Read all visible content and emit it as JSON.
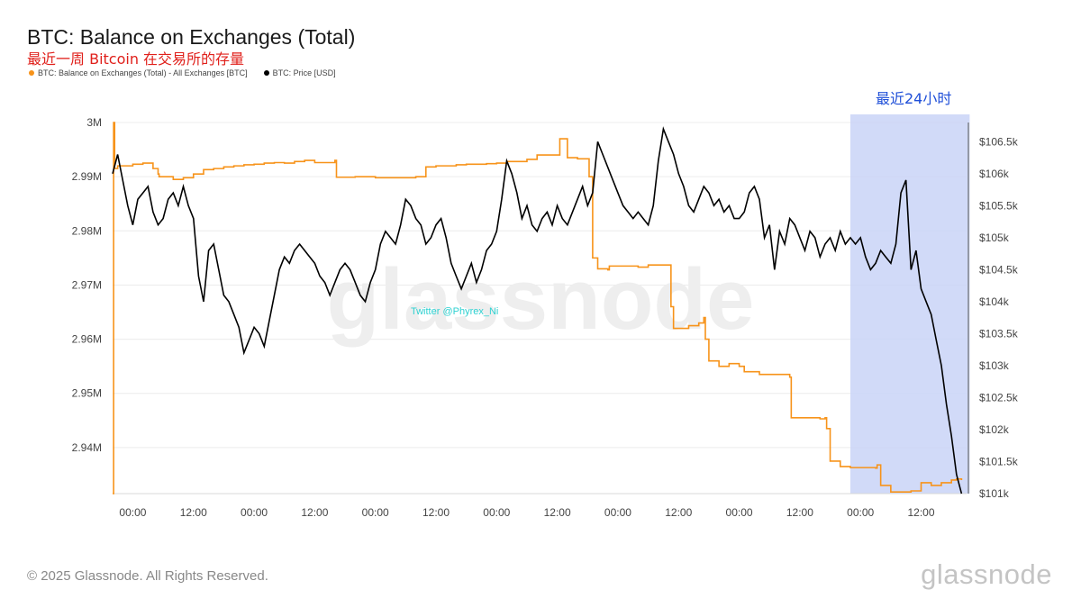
{
  "chart_data": {
    "type": "line",
    "title": "BTC: Balance on Exchanges (Total)",
    "subtitle": "最近一周 Bitcoin 在交易所的存量",
    "annotation": "最近24小时",
    "x_tick_labels": [
      "00:00",
      "12:00",
      "00:00",
      "12:00",
      "00:00",
      "12:00",
      "00:00",
      "12:00",
      "00:00",
      "12:00",
      "00:00",
      "12:00",
      "00:00",
      "12:00"
    ],
    "x_range_hours": [
      -4,
      165
    ],
    "highlight_range_hours": [
      142,
      164
    ],
    "y_left": {
      "ticks": [
        2940000,
        2950000,
        2960000,
        2970000,
        2980000,
        2990000,
        3000000
      ],
      "tick_labels": [
        "2.94M",
        "2.95M",
        "2.96M",
        "2.97M",
        "2.98M",
        "2.99M",
        "3M"
      ],
      "range": [
        2931500,
        3000000
      ]
    },
    "y_right": {
      "ticks": [
        101000,
        101500,
        102000,
        102500,
        103000,
        103500,
        104000,
        104500,
        105000,
        105500,
        106000,
        106500
      ],
      "tick_labels": [
        "$101k",
        "$101.5k",
        "$102k",
        "$102.5k",
        "$103k",
        "$103.5k",
        "$104k",
        "$104.5k",
        "$105k",
        "$105.5k",
        "$106k",
        "$106.5k"
      ],
      "range": [
        101000,
        106800
      ]
    },
    "series": [
      {
        "name": "BTC: Balance on Exchanges (Total) - All Exchanges [BTC]",
        "axis": "left",
        "color": "#f7931a",
        "x": [
          -4,
          -3.8,
          -3.6,
          -3,
          -2,
          0,
          2,
          4,
          5,
          5.2,
          6,
          8,
          10,
          12,
          14,
          16,
          18,
          20,
          22,
          24,
          26,
          28,
          30,
          32,
          34,
          36,
          38,
          40,
          40.3,
          41,
          44,
          48,
          52,
          56,
          58,
          60,
          62,
          64,
          66,
          68,
          70,
          72,
          74,
          76,
          78,
          80,
          82,
          84,
          84.5,
          86,
          88,
          90,
          90.3,
          91,
          92,
          94,
          94.3,
          96,
          98,
          100,
          102,
          104,
          106,
          106.5,
          107,
          108,
          110,
          112,
          113,
          113.3,
          114,
          116,
          118,
          120,
          121,
          122,
          124,
          126,
          128,
          130,
          130.3,
          132,
          134,
          136,
          137,
          137.3,
          138,
          140,
          142,
          144,
          146,
          147,
          147.3,
          148,
          150,
          152,
          154,
          156,
          158,
          160,
          162,
          163,
          164
        ],
        "y": [
          2931500,
          3000000,
          2991500,
          2992000,
          2992000,
          2992300,
          2992500,
          2991500,
          2990500,
          2990000,
          2990000,
          2989500,
          2989800,
          2990500,
          2991300,
          2991500,
          2991800,
          2992000,
          2992200,
          2992300,
          2992500,
          2992600,
          2992500,
          2992800,
          2993000,
          2992600,
          2992600,
          2993000,
          2989900,
          2989900,
          2990000,
          2989800,
          2989800,
          2990000,
          2991800,
          2992000,
          2992000,
          2992200,
          2992300,
          2992300,
          2992400,
          2992500,
          2992800,
          2992800,
          2993200,
          2994000,
          2994000,
          2994000,
          2997000,
          2993500,
          2993300,
          2993300,
          2990000,
          2975000,
          2973000,
          2972800,
          2973500,
          2973500,
          2973500,
          2973300,
          2973700,
          2973700,
          2973700,
          2966000,
          2962000,
          2962000,
          2962500,
          2963000,
          2964000,
          2960000,
          2956000,
          2955000,
          2955500,
          2955000,
          2954000,
          2954000,
          2953500,
          2953500,
          2953500,
          2953000,
          2945500,
          2945500,
          2945500,
          2945300,
          2945500,
          2943500,
          2937500,
          2936500,
          2936300,
          2936300,
          2936300,
          2936200,
          2936800,
          2933000,
          2931800,
          2931800,
          2932000,
          2933500,
          2933000,
          2933500,
          2934000,
          2934200,
          2934000
        ]
      },
      {
        "name": "BTC: Price [USD]",
        "axis": "right",
        "color": "#000000",
        "x": [
          -4,
          -3,
          -2,
          -1,
          0,
          1,
          2,
          3,
          4,
          5,
          6,
          7,
          8,
          9,
          10,
          11,
          12,
          13,
          14,
          15,
          16,
          17,
          18,
          19,
          20,
          21,
          22,
          23,
          24,
          25,
          26,
          27,
          28,
          29,
          30,
          31,
          32,
          33,
          34,
          35,
          36,
          37,
          38,
          39,
          40,
          41,
          42,
          43,
          44,
          45,
          46,
          47,
          48,
          49,
          50,
          51,
          52,
          53,
          54,
          55,
          56,
          57,
          58,
          59,
          60,
          61,
          62,
          63,
          64,
          65,
          66,
          67,
          68,
          69,
          70,
          71,
          72,
          73,
          74,
          75,
          76,
          77,
          78,
          79,
          80,
          81,
          82,
          83,
          84,
          85,
          86,
          87,
          88,
          89,
          90,
          91,
          92,
          93,
          94,
          95,
          96,
          97,
          98,
          99,
          100,
          101,
          102,
          103,
          104,
          105,
          106,
          107,
          108,
          109,
          110,
          111,
          112,
          113,
          114,
          115,
          116,
          117,
          118,
          119,
          120,
          121,
          122,
          123,
          124,
          125,
          126,
          127,
          128,
          129,
          130,
          131,
          132,
          133,
          134,
          135,
          136,
          137,
          138,
          139,
          140,
          141,
          142,
          143,
          144,
          145,
          146,
          147,
          148,
          149,
          150,
          151,
          152,
          153,
          154,
          155,
          156,
          157,
          158,
          159,
          160,
          161,
          162,
          163,
          164
        ],
        "y": [
          106000,
          106300,
          105900,
          105500,
          105200,
          105600,
          105700,
          105800,
          105400,
          105200,
          105300,
          105600,
          105700,
          105500,
          105800,
          105500,
          105300,
          104400,
          104000,
          104800,
          104900,
          104500,
          104100,
          104000,
          103800,
          103600,
          103200,
          103400,
          103600,
          103500,
          103300,
          103700,
          104100,
          104500,
          104700,
          104600,
          104800,
          104900,
          104800,
          104700,
          104600,
          104400,
          104300,
          104100,
          104300,
          104500,
          104600,
          104500,
          104300,
          104100,
          104000,
          104300,
          104500,
          104900,
          105100,
          105000,
          104900,
          105200,
          105600,
          105500,
          105300,
          105200,
          104900,
          105000,
          105200,
          105300,
          105000,
          104600,
          104400,
          104200,
          104400,
          104600,
          104300,
          104500,
          104800,
          104900,
          105100,
          105600,
          106200,
          106000,
          105700,
          105300,
          105500,
          105200,
          105100,
          105300,
          105400,
          105200,
          105500,
          105300,
          105200,
          105400,
          105600,
          105800,
          105500,
          105700,
          106500,
          106300,
          106100,
          105900,
          105700,
          105500,
          105400,
          105300,
          105400,
          105300,
          105200,
          105500,
          106200,
          106700,
          106500,
          106300,
          106000,
          105800,
          105500,
          105400,
          105600,
          105800,
          105700,
          105500,
          105600,
          105400,
          105500,
          105300,
          105300,
          105400,
          105700,
          105800,
          105600,
          105000,
          105200,
          104500,
          105100,
          104900,
          105300,
          105200,
          105000,
          104800,
          105100,
          105000,
          104700,
          104900,
          105000,
          104800,
          105100,
          104900,
          105000,
          104900,
          105000,
          104700,
          104500,
          104600,
          104800,
          104700,
          104600,
          104900,
          105700,
          105900,
          104500,
          104800,
          104200,
          104000,
          103800,
          103400,
          103000,
          102400,
          101900,
          101300,
          101000
        ]
      }
    ]
  },
  "footer": {
    "copyright": "© 2025 Glassnode. All Rights Reserved.",
    "logo": "glassnode",
    "watermark": "glassnode",
    "twitter_tag": "Twitter @Phyrex_Ni"
  },
  "colors": {
    "balance": "#f7931a",
    "price": "#000000",
    "highlight": "#c9d3f7",
    "annotation": "#1f4fd8",
    "subtitle": "#e0201b"
  }
}
